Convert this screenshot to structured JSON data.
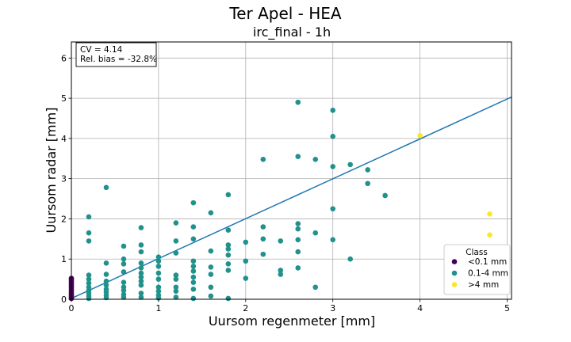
{
  "chart_data": {
    "type": "scatter",
    "suptitle": "Ter Apel - HEA",
    "title": "irc_final - 1h",
    "xlabel": "Uursom regenmeter [mm]",
    "ylabel": "Uursom radar [mm]",
    "xlim": [
      0,
      5.05
    ],
    "ylim": [
      0,
      6.4
    ],
    "xticks": [
      "0",
      "1",
      "2",
      "3",
      "4",
      "5"
    ],
    "yticks": [
      "0",
      "1",
      "2",
      "3",
      "4",
      "5",
      "6"
    ],
    "grid": true,
    "stats_box": {
      "cv": "CV = 4.14",
      "bias": "Rel. bias = -32.8%"
    },
    "legend": {
      "title": "Class",
      "position": "lower right",
      "entries": [
        {
          "label": "<0.1 mm",
          "color": "#440154"
        },
        {
          "label": "0.1-4 mm",
          "color": "#21918c"
        },
        {
          "label": ">4 mm",
          "color": "#fde725"
        }
      ]
    },
    "fit_line": {
      "color": "#1f77b4",
      "points": [
        [
          0,
          0.02
        ],
        [
          5.05,
          5.03
        ]
      ]
    },
    "series": [
      {
        "name": "<0.1 mm",
        "color": "#440154",
        "points": [
          [
            0,
            0.02
          ],
          [
            0,
            0.05
          ],
          [
            0,
            0.08
          ],
          [
            0,
            0.1
          ],
          [
            0,
            0.13
          ],
          [
            0,
            0.16
          ],
          [
            0,
            0.2
          ],
          [
            0,
            0.24
          ],
          [
            0,
            0.28
          ],
          [
            0,
            0.32
          ],
          [
            0,
            0.36
          ],
          [
            0,
            0.4
          ],
          [
            0,
            0.44
          ],
          [
            0,
            0.48
          ],
          [
            0,
            0.52
          ]
        ]
      },
      {
        "name": "0.1-4 mm",
        "color": "#21918c",
        "points": [
          [
            0.2,
            2.05
          ],
          [
            0.2,
            1.65
          ],
          [
            0.2,
            1.45
          ],
          [
            0.2,
            0.6
          ],
          [
            0.2,
            0.5
          ],
          [
            0.2,
            0.4
          ],
          [
            0.2,
            0.3
          ],
          [
            0.2,
            0.22
          ],
          [
            0.2,
            0.15
          ],
          [
            0.2,
            0.08
          ],
          [
            0.2,
            0.02
          ],
          [
            0.4,
            2.78
          ],
          [
            0.4,
            0.9
          ],
          [
            0.4,
            0.62
          ],
          [
            0.4,
            0.45
          ],
          [
            0.4,
            0.35
          ],
          [
            0.4,
            0.25
          ],
          [
            0.4,
            0.18
          ],
          [
            0.4,
            0.1
          ],
          [
            0.4,
            0.04
          ],
          [
            0.6,
            1.32
          ],
          [
            0.6,
            1.0
          ],
          [
            0.6,
            0.88
          ],
          [
            0.6,
            0.68
          ],
          [
            0.6,
            0.42
          ],
          [
            0.6,
            0.3
          ],
          [
            0.6,
            0.22
          ],
          [
            0.6,
            0.12
          ],
          [
            0.6,
            0.05
          ],
          [
            0.8,
            1.78
          ],
          [
            0.8,
            1.35
          ],
          [
            0.8,
            1.18
          ],
          [
            0.8,
            0.9
          ],
          [
            0.8,
            0.78
          ],
          [
            0.8,
            0.65
          ],
          [
            0.8,
            0.55
          ],
          [
            0.8,
            0.45
          ],
          [
            0.8,
            0.35
          ],
          [
            0.8,
            0.15
          ],
          [
            0.8,
            0.05
          ],
          [
            1.0,
            1.05
          ],
          [
            1.0,
            0.95
          ],
          [
            1.0,
            0.82
          ],
          [
            1.0,
            0.65
          ],
          [
            1.0,
            0.5
          ],
          [
            1.0,
            0.3
          ],
          [
            1.0,
            0.2
          ],
          [
            1.0,
            0.1
          ],
          [
            1.0,
            0.03
          ],
          [
            1.2,
            1.9
          ],
          [
            1.2,
            1.45
          ],
          [
            1.2,
            1.15
          ],
          [
            1.2,
            0.6
          ],
          [
            1.2,
            0.5
          ],
          [
            1.2,
            0.3
          ],
          [
            1.2,
            0.2
          ],
          [
            1.2,
            0.05
          ],
          [
            1.4,
            2.4
          ],
          [
            1.4,
            1.8
          ],
          [
            1.4,
            1.5
          ],
          [
            1.4,
            0.95
          ],
          [
            1.4,
            0.82
          ],
          [
            1.4,
            0.7
          ],
          [
            1.4,
            0.55
          ],
          [
            1.4,
            0.42
          ],
          [
            1.4,
            0.25
          ],
          [
            1.4,
            0.02
          ],
          [
            1.6,
            2.15
          ],
          [
            1.6,
            1.2
          ],
          [
            1.6,
            0.8
          ],
          [
            1.6,
            0.62
          ],
          [
            1.6,
            0.3
          ],
          [
            1.6,
            0.08
          ],
          [
            1.8,
            2.6
          ],
          [
            1.8,
            1.72
          ],
          [
            1.8,
            1.35
          ],
          [
            1.8,
            1.25
          ],
          [
            1.8,
            1.1
          ],
          [
            1.8,
            0.88
          ],
          [
            1.8,
            0.72
          ],
          [
            1.8,
            0.02
          ],
          [
            2.0,
            1.42
          ],
          [
            2.0,
            0.95
          ],
          [
            2.0,
            0.52
          ],
          [
            2.2,
            3.48
          ],
          [
            2.2,
            1.8
          ],
          [
            2.2,
            1.5
          ],
          [
            2.2,
            1.12
          ],
          [
            2.4,
            1.45
          ],
          [
            2.4,
            0.72
          ],
          [
            2.4,
            0.62
          ],
          [
            2.6,
            4.9
          ],
          [
            2.6,
            3.55
          ],
          [
            2.6,
            1.88
          ],
          [
            2.6,
            1.75
          ],
          [
            2.6,
            1.48
          ],
          [
            2.6,
            1.18
          ],
          [
            2.6,
            0.78
          ],
          [
            2.8,
            3.48
          ],
          [
            2.8,
            1.65
          ],
          [
            2.8,
            0.3
          ],
          [
            3.0,
            4.7
          ],
          [
            3.0,
            4.05
          ],
          [
            3.0,
            3.3
          ],
          [
            3.0,
            2.25
          ],
          [
            3.0,
            1.48
          ],
          [
            3.2,
            3.35
          ],
          [
            3.2,
            1.0
          ],
          [
            3.4,
            3.22
          ],
          [
            3.4,
            2.88
          ],
          [
            3.6,
            2.58
          ]
        ]
      },
      {
        "name": ">4 mm",
        "color": "#fde725",
        "points": [
          [
            4.0,
            4.07
          ],
          [
            4.8,
            2.12
          ],
          [
            4.8,
            1.6
          ]
        ]
      }
    ]
  }
}
